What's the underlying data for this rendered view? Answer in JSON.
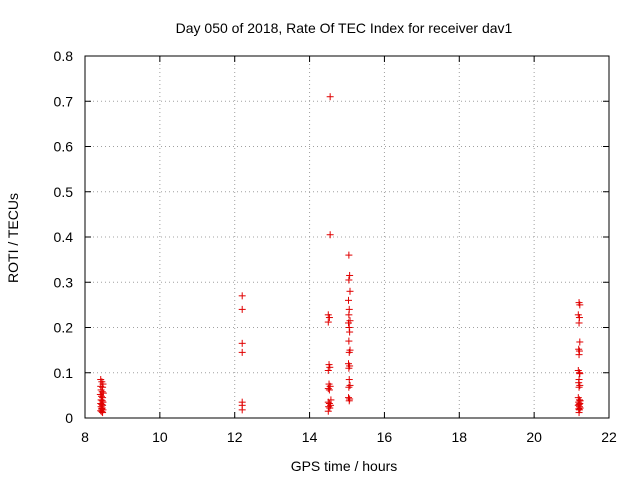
{
  "chart_data": {
    "type": "scatter",
    "title": "Day 050 of 2018, Rate Of TEC Index for receiver dav1",
    "xlabel": "GPS time / hours",
    "ylabel": "ROTI / TECUs",
    "xlim": [
      8,
      22
    ],
    "ylim": [
      0,
      0.8
    ],
    "xticks": [
      "8",
      "10",
      "12",
      "14",
      "16",
      "18",
      "20",
      "22"
    ],
    "yticks": [
      "0",
      "0.1",
      "0.2",
      "0.3",
      "0.4",
      "0.5",
      "0.6",
      "0.7",
      "0.8"
    ],
    "grid": true,
    "marker": "plus",
    "color": "#e00000",
    "series": [
      {
        "points": [
          [
            8.42,
            0.085
          ],
          [
            8.45,
            0.08
          ],
          [
            8.48,
            0.075
          ],
          [
            8.42,
            0.07
          ],
          [
            8.47,
            0.068
          ],
          [
            8.43,
            0.062
          ],
          [
            8.46,
            0.058
          ],
          [
            8.49,
            0.055
          ],
          [
            8.41,
            0.052
          ],
          [
            8.44,
            0.048
          ],
          [
            8.47,
            0.045
          ],
          [
            8.43,
            0.04
          ],
          [
            8.46,
            0.038
          ],
          [
            8.48,
            0.035
          ],
          [
            8.42,
            0.032
          ],
          [
            8.45,
            0.03
          ],
          [
            8.47,
            0.028
          ],
          [
            8.43,
            0.025
          ],
          [
            8.46,
            0.022
          ],
          [
            8.44,
            0.02
          ],
          [
            8.48,
            0.018
          ],
          [
            8.42,
            0.016
          ],
          [
            8.45,
            0.014
          ],
          [
            8.47,
            0.012
          ],
          [
            12.2,
            0.27
          ],
          [
            12.2,
            0.24
          ],
          [
            12.2,
            0.165
          ],
          [
            12.2,
            0.145
          ],
          [
            12.2,
            0.035
          ],
          [
            12.2,
            0.028
          ],
          [
            12.2,
            0.018
          ],
          [
            14.55,
            0.71
          ],
          [
            14.55,
            0.405
          ],
          [
            14.5,
            0.228
          ],
          [
            14.53,
            0.222
          ],
          [
            14.5,
            0.212
          ],
          [
            14.52,
            0.118
          ],
          [
            14.54,
            0.112
          ],
          [
            14.5,
            0.105
          ],
          [
            14.52,
            0.075
          ],
          [
            14.55,
            0.07
          ],
          [
            14.5,
            0.065
          ],
          [
            14.53,
            0.062
          ],
          [
            14.57,
            0.04
          ],
          [
            14.5,
            0.035
          ],
          [
            14.53,
            0.032
          ],
          [
            14.56,
            0.028
          ],
          [
            14.51,
            0.025
          ],
          [
            14.54,
            0.022
          ],
          [
            14.5,
            0.015
          ],
          [
            15.05,
            0.36
          ],
          [
            15.07,
            0.315
          ],
          [
            15.05,
            0.305
          ],
          [
            15.08,
            0.28
          ],
          [
            15.04,
            0.26
          ],
          [
            15.06,
            0.24
          ],
          [
            15.05,
            0.228
          ],
          [
            15.08,
            0.215
          ],
          [
            15.04,
            0.21
          ],
          [
            15.06,
            0.2
          ],
          [
            15.07,
            0.19
          ],
          [
            15.05,
            0.17
          ],
          [
            15.08,
            0.15
          ],
          [
            15.06,
            0.145
          ],
          [
            15.04,
            0.12
          ],
          [
            15.07,
            0.115
          ],
          [
            15.05,
            0.11
          ],
          [
            15.06,
            0.085
          ],
          [
            15.08,
            0.072
          ],
          [
            15.05,
            0.068
          ],
          [
            15.04,
            0.045
          ],
          [
            15.07,
            0.042
          ],
          [
            15.06,
            0.038
          ],
          [
            21.2,
            0.255
          ],
          [
            21.22,
            0.25
          ],
          [
            21.18,
            0.228
          ],
          [
            21.21,
            0.222
          ],
          [
            21.2,
            0.21
          ],
          [
            21.22,
            0.168
          ],
          [
            21.19,
            0.152
          ],
          [
            21.21,
            0.148
          ],
          [
            21.2,
            0.14
          ],
          [
            21.18,
            0.105
          ],
          [
            21.21,
            0.1
          ],
          [
            21.22,
            0.098
          ],
          [
            21.2,
            0.085
          ],
          [
            21.19,
            0.078
          ],
          [
            21.22,
            0.072
          ],
          [
            21.2,
            0.068
          ],
          [
            21.18,
            0.045
          ],
          [
            21.21,
            0.04
          ],
          [
            21.23,
            0.038
          ],
          [
            21.19,
            0.035
          ],
          [
            21.22,
            0.032
          ],
          [
            21.2,
            0.03
          ],
          [
            21.18,
            0.028
          ],
          [
            21.21,
            0.025
          ],
          [
            21.23,
            0.022
          ],
          [
            21.19,
            0.02
          ],
          [
            21.21,
            0.018
          ],
          [
            21.2,
            0.012
          ]
        ]
      }
    ]
  }
}
